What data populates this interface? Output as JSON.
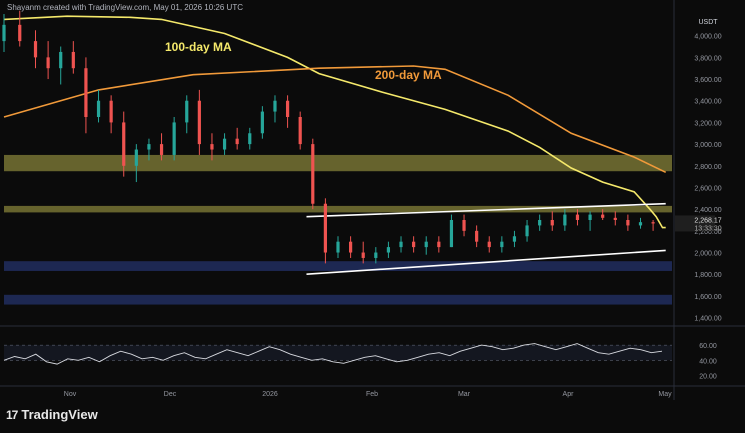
{
  "header": {
    "text": "Shayanm created with TradingView.com, May 01, 2026 10:26 UTC"
  },
  "branding": {
    "logo": "17",
    "name": "TradingView"
  },
  "chart_data": {
    "type": "candlestick",
    "currency": "USDT",
    "y_ticks": [
      4000,
      3800,
      3600,
      3400,
      3200,
      3000,
      2800,
      2600,
      2400,
      2200,
      2000,
      1800,
      1600,
      1400
    ],
    "y_tick_labels": [
      "4,000.00",
      "3,800.00",
      "3,600.00",
      "3,400.00",
      "3,200.00",
      "3,000.00",
      "2,800.00",
      "2,600.00",
      "2,400.00",
      "2,200.00",
      "2,000.00",
      "1,800.00",
      "1,600.00",
      "1,400.00"
    ],
    "x_labels": [
      "Nov",
      "Dec",
      "2026",
      "Feb",
      "Mar",
      "Apr",
      "May"
    ],
    "last_price": "2,268.17",
    "countdown": "13:33:30",
    "annotations": [
      "100-day MA",
      "200-day MA"
    ],
    "ma100": [
      [
        0,
        4150
      ],
      [
        20,
        4180
      ],
      [
        40,
        4170
      ],
      [
        50,
        4150
      ],
      [
        70,
        4020
      ],
      [
        90,
        3800
      ],
      [
        100,
        3650
      ],
      [
        120,
        3480
      ],
      [
        140,
        3320
      ],
      [
        160,
        3120
      ],
      [
        170,
        2970
      ],
      [
        180,
        2780
      ],
      [
        190,
        2650
      ],
      [
        200,
        2560
      ],
      [
        205,
        2400
      ],
      [
        207,
        2330
      ],
      [
        209,
        2230
      ],
      [
        210,
        2230
      ]
    ],
    "ma200": [
      [
        0,
        3250
      ],
      [
        30,
        3500
      ],
      [
        60,
        3640
      ],
      [
        100,
        3700
      ],
      [
        130,
        3720
      ],
      [
        140,
        3690
      ],
      [
        160,
        3450
      ],
      [
        180,
        3100
      ],
      [
        200,
        2880
      ],
      [
        210,
        2740
      ]
    ],
    "ohlc": [
      [
        0,
        3950,
        4200,
        3850,
        4100
      ],
      [
        5,
        4100,
        4230,
        3900,
        3950
      ],
      [
        10,
        3950,
        4050,
        3700,
        3800
      ],
      [
        14,
        3800,
        3950,
        3600,
        3700
      ],
      [
        18,
        3700,
        3900,
        3550,
        3850
      ],
      [
        22,
        3850,
        3950,
        3650,
        3700
      ],
      [
        26,
        3700,
        3800,
        3100,
        3250
      ],
      [
        30,
        3250,
        3500,
        3200,
        3400
      ],
      [
        34,
        3400,
        3450,
        3100,
        3200
      ],
      [
        38,
        3200,
        3300,
        2700,
        2800
      ],
      [
        42,
        2800,
        3000,
        2650,
        2950
      ],
      [
        46,
        2950,
        3050,
        2850,
        3000
      ],
      [
        50,
        3000,
        3100,
        2850,
        2900
      ],
      [
        54,
        2900,
        3250,
        2850,
        3200
      ],
      [
        58,
        3200,
        3450,
        3100,
        3400
      ],
      [
        62,
        3400,
        3500,
        2900,
        3000
      ],
      [
        66,
        3000,
        3100,
        2850,
        2950
      ],
      [
        70,
        2950,
        3100,
        2900,
        3050
      ],
      [
        74,
        3050,
        3150,
        2950,
        3000
      ],
      [
        78,
        3000,
        3150,
        2950,
        3100
      ],
      [
        82,
        3100,
        3350,
        3050,
        3300
      ],
      [
        86,
        3300,
        3450,
        3200,
        3400
      ],
      [
        90,
        3400,
        3450,
        3150,
        3250
      ],
      [
        94,
        3250,
        3300,
        2950,
        3000
      ],
      [
        98,
        3000,
        3050,
        2400,
        2450
      ],
      [
        102,
        2450,
        2500,
        1900,
        2000
      ],
      [
        106,
        2000,
        2150,
        1950,
        2100
      ],
      [
        110,
        2100,
        2150,
        1950,
        2000
      ],
      [
        114,
        2000,
        2100,
        1900,
        1950
      ],
      [
        118,
        1950,
        2050,
        1900,
        2000
      ],
      [
        122,
        2000,
        2100,
        1950,
        2050
      ],
      [
        126,
        2050,
        2150,
        2000,
        2100
      ],
      [
        130,
        2100,
        2150,
        2000,
        2050
      ],
      [
        134,
        2050,
        2150,
        1980,
        2100
      ],
      [
        138,
        2100,
        2150,
        2000,
        2050
      ],
      [
        142,
        2050,
        2350,
        2050,
        2300
      ],
      [
        146,
        2300,
        2350,
        2150,
        2200
      ],
      [
        150,
        2200,
        2250,
        2050,
        2100
      ],
      [
        154,
        2100,
        2150,
        2000,
        2050
      ],
      [
        158,
        2050,
        2150,
        2000,
        2100
      ],
      [
        162,
        2100,
        2200,
        2050,
        2150
      ],
      [
        166,
        2150,
        2300,
        2100,
        2250
      ],
      [
        170,
        2250,
        2350,
        2200,
        2300
      ],
      [
        174,
        2300,
        2380,
        2200,
        2250
      ],
      [
        178,
        2250,
        2400,
        2200,
        2350
      ],
      [
        182,
        2350,
        2400,
        2250,
        2300
      ],
      [
        186,
        2300,
        2380,
        2200,
        2350
      ],
      [
        190,
        2350,
        2400,
        2300,
        2320
      ],
      [
        194,
        2320,
        2380,
        2250,
        2300
      ],
      [
        198,
        2300,
        2350,
        2200,
        2250
      ],
      [
        202,
        2250,
        2320,
        2220,
        2280
      ],
      [
        206,
        2280,
        2300,
        2200,
        2268
      ]
    ],
    "zones": [
      {
        "from": 2900,
        "to": 2750,
        "color": "#85813a"
      },
      {
        "from": 2430,
        "to": 2370,
        "color": "#85813a"
      },
      {
        "from": 1920,
        "to": 1830,
        "color": "#24336b"
      },
      {
        "from": 1610,
        "to": 1520,
        "color": "#24336b"
      }
    ],
    "channel_upper": [
      [
        96,
        2330
      ],
      [
        210,
        2450
      ]
    ],
    "channel_lower": [
      [
        96,
        1800
      ],
      [
        210,
        2020
      ]
    ],
    "rsi": {
      "ticks": [
        60,
        40,
        20
      ],
      "tick_labels": [
        "60.00",
        "40.00",
        "20.00"
      ],
      "values": [
        40,
        45,
        42,
        48,
        38,
        35,
        42,
        40,
        44,
        38,
        46,
        52,
        48,
        42,
        44,
        40,
        46,
        50,
        44,
        42,
        48,
        54,
        50,
        46,
        52,
        58,
        54,
        48,
        44,
        40,
        42,
        38,
        36,
        40,
        44,
        46,
        42,
        38,
        40,
        44,
        48,
        50,
        46,
        52,
        56,
        60,
        58,
        54,
        56,
        60,
        62,
        58,
        54,
        58,
        62,
        56,
        50,
        48,
        52,
        56,
        54,
        50,
        52
      ]
    }
  }
}
